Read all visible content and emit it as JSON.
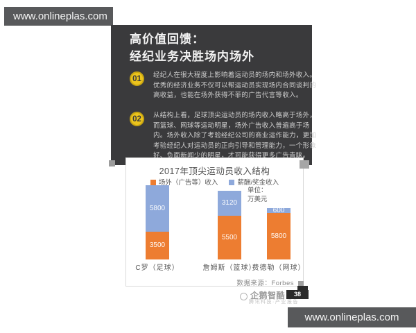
{
  "top_banner": {
    "url": "www.onlineplas.com"
  },
  "bottom_banner": {
    "url": "www.onlineplas.com"
  },
  "slide": {
    "background_color": "#3A3A3C",
    "accent_color": "#ECC41D",
    "title_line1": "高价值回馈：",
    "title_line2": "经纪业务决胜场内场外",
    "points": [
      {
        "number": "01",
        "lines": [
          "经纪人在很大程度上影响着运动员的场内和场外收入。",
          "优秀的经济业务不仅可以帮运动员实现场内合同谈判的",
          "高收益，也能在场外获得不菲的广告代言等收入。"
        ]
      },
      {
        "number": "02",
        "lines": [
          "从结构上看，足球顶尖运动员的场内收入略高于场外，",
          "而篮球、网球等运动明星，场外广告收入普遍高于场",
          "内。场外收入除了考验经纪公司的商业运作能力，更加",
          "考验经纪人对运动员的正向引导和管理能力，一个形象",
          "好、负面新闻少的明星，才可能获得更多广告青睐。"
        ]
      }
    ]
  },
  "chart_data": {
    "type": "bar",
    "stacked": true,
    "title": "2017年顶尖运动员收入结构",
    "unit_lines": [
      "单位：",
      "万美元"
    ],
    "categories": [
      "C罗（足球）",
      "詹姆斯（篮球）",
      "费德勒（网球）"
    ],
    "series": [
      {
        "name": "场外（广告等）收入",
        "color": "#ED7D31",
        "position": "bottom",
        "values": [
          3500,
          5500,
          5800
        ]
      },
      {
        "name": "薪酬/奖金收入",
        "color": "#8EA9DB",
        "position": "top",
        "values": [
          5800,
          3120,
          600
        ]
      }
    ],
    "totals": [
      9300,
      8620,
      6400
    ],
    "legend_position": "top",
    "value_labels": true,
    "grid": false,
    "source": "数据来源：Forbes"
  },
  "watermark": {
    "brand": "企鹅智酷",
    "page_number": "38",
    "subline": "腾讯科技·产业报告"
  }
}
